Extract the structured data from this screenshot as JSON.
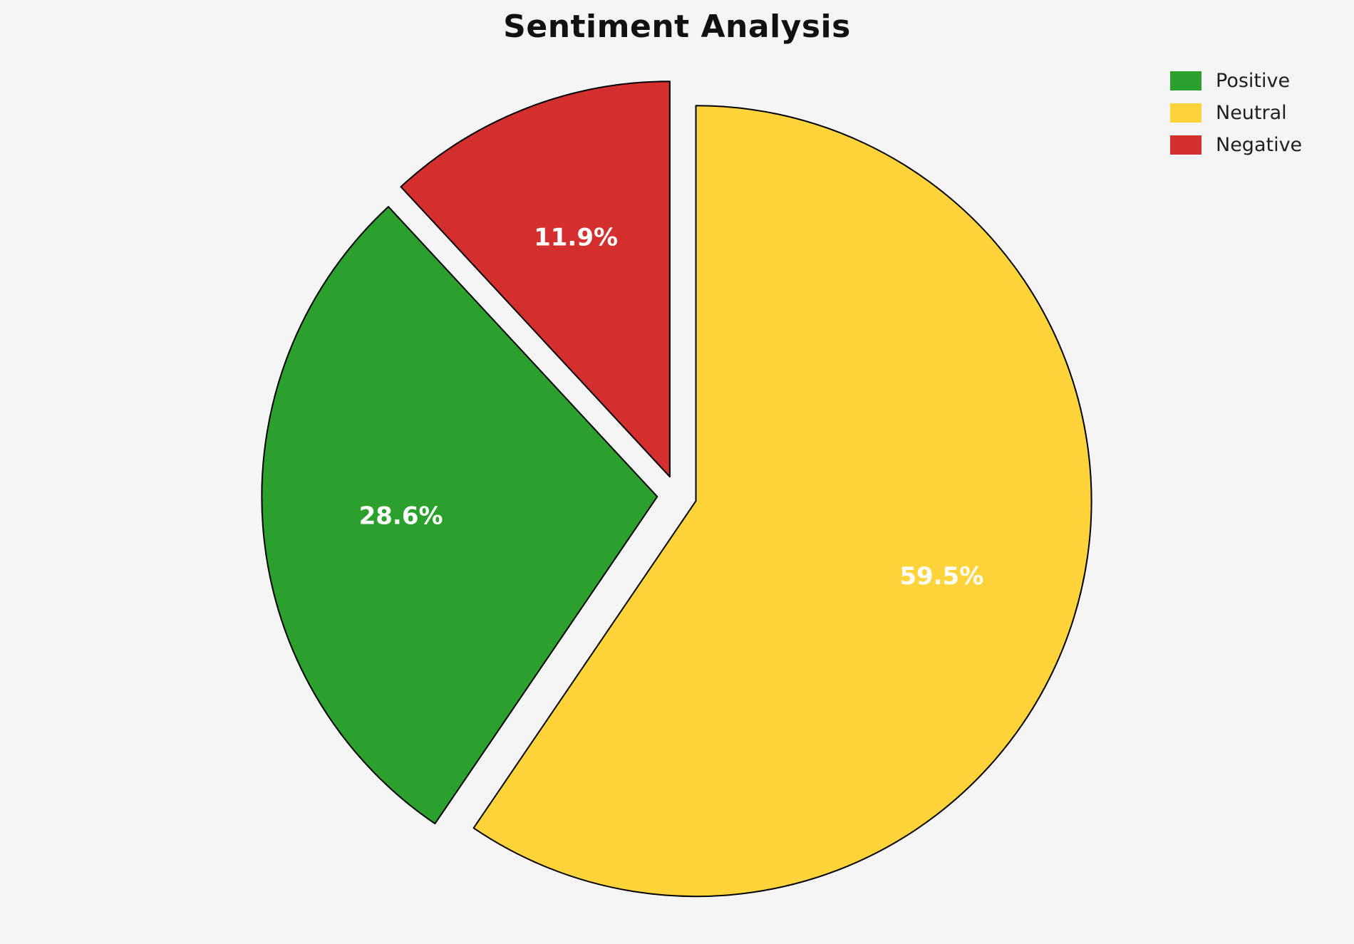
{
  "page": {
    "background_color": "#f5f5f5"
  },
  "chart_data": {
    "type": "pie",
    "title": "Sentiment Analysis",
    "labels": [
      "Positive",
      "Neutral",
      "Negative"
    ],
    "values": [
      28.6,
      59.5,
      11.9
    ],
    "pct_labels": [
      "28.6%",
      "59.5%",
      "11.9%"
    ],
    "colors": [
      "#2ca02c",
      "#ffd43b",
      "#d32f2f"
    ],
    "edge_color": "#000000",
    "pct_label_color": "#ffffff",
    "start_angle": 90,
    "direction": "clockwise",
    "draw_order": [
      "Neutral",
      "Positive",
      "Negative"
    ],
    "explode": 0.05,
    "legend_position": "upper right"
  }
}
